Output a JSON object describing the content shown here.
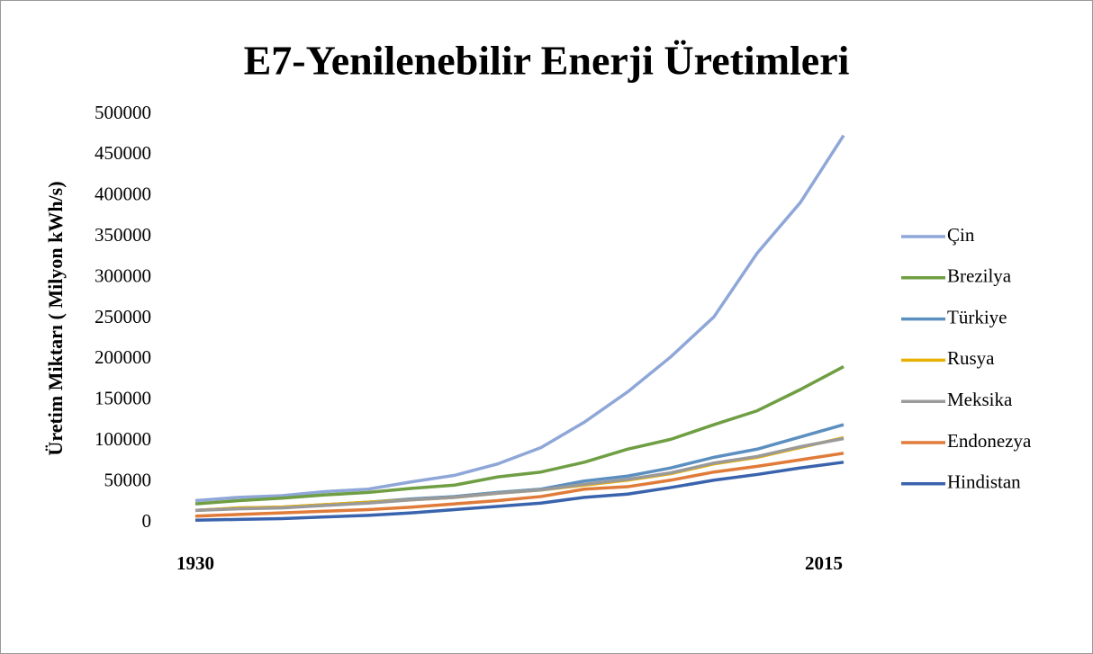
{
  "chart_data": {
    "type": "line",
    "title": "E7-Yenilenebilir Enerji Üretimleri",
    "y_label": "Üretim Miktarı ( Milyon kWh/s)",
    "categories": [
      "1930",
      null,
      null,
      null,
      null,
      null,
      null,
      null,
      null,
      null,
      null,
      null,
      null,
      null,
      null,
      "2015"
    ],
    "ylim": [
      0,
      500000
    ],
    "yticks": [
      0,
      50000,
      100000,
      150000,
      200000,
      250000,
      300000,
      350000,
      400000,
      450000,
      500000
    ],
    "grid": false,
    "legend": "right",
    "series": [
      {
        "name": "Çin",
        "color": "#8fa7d8",
        "values": [
          27000,
          31000,
          33000,
          38000,
          41000,
          50000,
          58000,
          72000,
          92000,
          123000,
          160000,
          203000,
          252000,
          330000,
          392000,
          474000
        ]
      },
      {
        "name": "Brezilya",
        "color": "#6f9e43",
        "values": [
          23000,
          27000,
          30000,
          34000,
          37000,
          42000,
          46000,
          56000,
          62000,
          74000,
          90000,
          102000,
          120000,
          137000,
          163000,
          191000
        ]
      },
      {
        "name": "Türkiye",
        "color": "#5b8fc0",
        "values": [
          15000,
          18000,
          19000,
          22000,
          25000,
          29000,
          32000,
          37000,
          41000,
          51000,
          57000,
          67000,
          80000,
          90000,
          105000,
          120000
        ]
      },
      {
        "name": "Rusya",
        "color": "#e8b000",
        "values": [
          15000,
          18000,
          19000,
          22000,
          25000,
          28000,
          31000,
          36000,
          40000,
          46000,
          52000,
          60000,
          72000,
          80000,
          92000,
          104000
        ]
      },
      {
        "name": "Meksika",
        "color": "#9a9a9a",
        "values": [
          15000,
          17000,
          18000,
          21000,
          24000,
          28000,
          31000,
          36000,
          40000,
          47000,
          53000,
          61000,
          73000,
          81000,
          93000,
          103000
        ]
      },
      {
        "name": "Endonezya",
        "color": "#e07b39",
        "values": [
          8000,
          10000,
          12000,
          14000,
          16000,
          19000,
          23000,
          27000,
          32000,
          41000,
          44000,
          52000,
          62000,
          69000,
          77000,
          85000
        ]
      },
      {
        "name": "Hindistan",
        "color": "#3a63ad",
        "values": [
          3000,
          4000,
          5000,
          7000,
          9000,
          12000,
          16000,
          20000,
          24000,
          31000,
          35000,
          43000,
          52000,
          59000,
          67000,
          74000
        ]
      }
    ]
  }
}
